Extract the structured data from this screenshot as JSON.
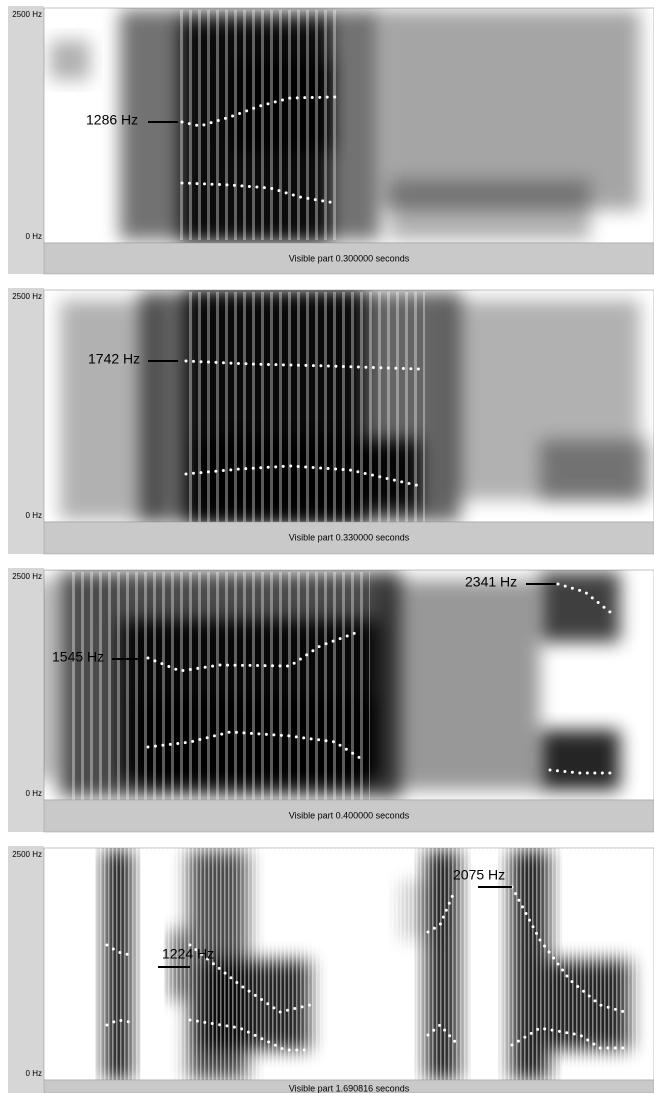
{
  "panels": [
    {
      "top_label": "2500 Hz",
      "bottom_label": "0 Hz",
      "annotations": [
        "1286 Hz"
      ],
      "footer": "Visible part 0.300000 seconds"
    },
    {
      "top_label": "2500 Hz",
      "bottom_label": "0 Hz",
      "annotations": [
        "1742 Hz"
      ],
      "footer": "Visible part 0.330000 seconds"
    },
    {
      "top_label": "2500 Hz",
      "bottom_label": "0 Hz",
      "annotations": [
        "1545 Hz",
        "2341 Hz"
      ],
      "footer": "Visible part 0.400000 seconds"
    },
    {
      "top_label": "2500 Hz",
      "bottom_label": "0 Hz",
      "annotations": [
        "1224 Hz",
        "2075 Hz"
      ],
      "footer": "Visible part 1.690816 seconds"
    }
  ]
}
